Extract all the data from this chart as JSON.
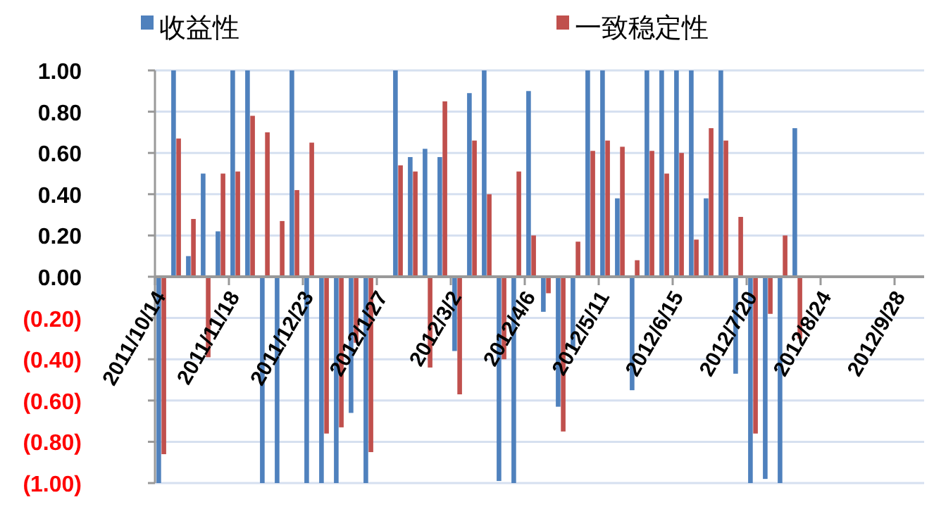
{
  "chart_data": {
    "type": "bar",
    "categories": [
      "2011/10/14",
      null,
      null,
      null,
      null,
      "2011/11/18",
      null,
      null,
      null,
      null,
      "2011/12/23",
      null,
      null,
      null,
      null,
      "2012/1/27",
      null,
      null,
      null,
      null,
      "2012/3/2",
      null,
      null,
      null,
      null,
      "2012/4/6",
      null,
      null,
      null,
      null,
      "2012/5/11",
      null,
      null,
      null,
      null,
      "2012/6/15",
      null,
      null,
      null,
      null,
      "2012/7/20",
      null,
      null,
      null,
      null,
      "2012/8/24",
      null,
      null,
      null,
      null,
      "2012/9/28",
      null
    ],
    "series": [
      {
        "name": "收益性",
        "color": "#4f81bd",
        "values": [
          -1.0,
          1.0,
          0.1,
          0.5,
          0.22,
          1.0,
          1.0,
          -1.0,
          -1.0,
          1.0,
          -1.0,
          -1.0,
          -1.0,
          -0.66,
          -1.0,
          null,
          1.0,
          0.58,
          0.62,
          0.58,
          -0.36,
          0.89,
          1.0,
          -0.99,
          -1.0,
          0.9,
          -0.17,
          -0.63,
          -0.35,
          1.0,
          1.0,
          0.38,
          -0.55,
          1.0,
          1.0,
          1.0,
          1.0,
          0.38,
          1.0,
          -0.47,
          -1.0,
          -0.98,
          -1.0,
          0.72,
          null,
          null,
          null,
          null,
          null,
          null,
          null,
          null
        ]
      },
      {
        "name": "一致稳定性",
        "color": "#c0504d",
        "values": [
          -0.86,
          0.67,
          0.28,
          -0.39,
          0.5,
          0.51,
          0.78,
          0.7,
          0.27,
          0.42,
          0.65,
          -0.76,
          -0.73,
          -0.32,
          -0.85,
          null,
          0.54,
          0.51,
          -0.44,
          0.85,
          -0.57,
          0.66,
          0.4,
          -0.4,
          0.51,
          0.2,
          -0.08,
          -0.75,
          0.17,
          0.61,
          0.66,
          0.63,
          0.08,
          0.61,
          0.5,
          0.6,
          0.18,
          0.72,
          0.66,
          0.29,
          -0.76,
          -0.18,
          0.2,
          -0.3,
          null,
          null,
          null,
          null,
          null,
          null,
          null,
          null
        ]
      }
    ],
    "ylim": [
      -1.0,
      1.0
    ],
    "yticks": [
      {
        "value": 1.0,
        "label": "1.00"
      },
      {
        "value": 0.8,
        "label": "0.80"
      },
      {
        "value": 0.6,
        "label": "0.60"
      },
      {
        "value": 0.4,
        "label": "0.40"
      },
      {
        "value": 0.2,
        "label": "0.20"
      },
      {
        "value": 0.0,
        "label": "0.00"
      },
      {
        "value": -0.2,
        "label": "(0.20)"
      },
      {
        "value": -0.4,
        "label": "(0.40)"
      },
      {
        "value": -0.6,
        "label": "(0.60)"
      },
      {
        "value": -0.8,
        "label": "(0.80)"
      },
      {
        "value": -1.0,
        "label": "(1.00)"
      }
    ],
    "grid": "y",
    "legend": "top"
  }
}
